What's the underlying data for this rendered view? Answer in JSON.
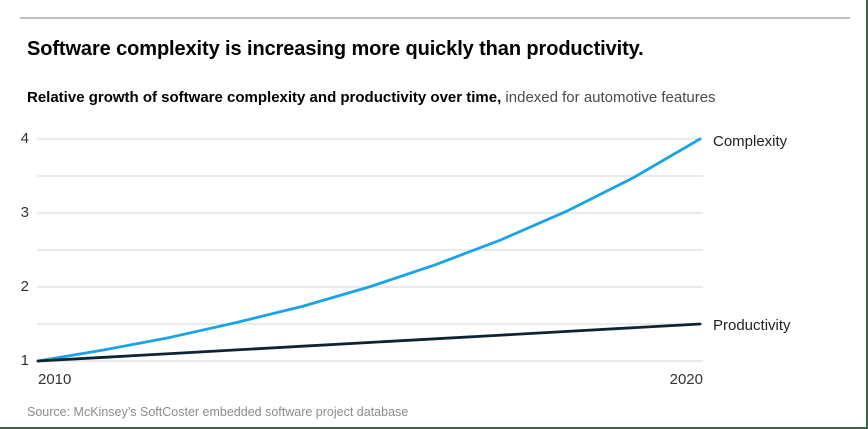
{
  "page": {
    "title": "Software complexity is increasing more quickly than productivity.",
    "subtitle_bold": "Relative growth of software complexity and productivity over time,",
    "subtitle_regular": " indexed for automotive features",
    "source": "Source: McKinsey’s SoftCoster embedded software project database"
  },
  "colors": {
    "complexity_line": "#1aa3e6",
    "productivity_line": "#0d2433",
    "gridline": "#e4e4e4",
    "top_rule": "#c0c0c0",
    "frame_border": "#41604b",
    "tick_text": "#333333",
    "source_text": "#8c8c8c"
  },
  "chart_data": {
    "type": "line",
    "x": [
      2010,
      2011,
      2012,
      2013,
      2014,
      2015,
      2016,
      2017,
      2018,
      2019,
      2020
    ],
    "x_axis_labels": [
      "2010",
      "2020"
    ],
    "ylim": [
      1,
      4
    ],
    "yticks": [
      1,
      2,
      3,
      4
    ],
    "gridline_step": 0.5,
    "grid": true,
    "legend_position": "right-of-line-ends",
    "series": [
      {
        "name": "Complexity",
        "color": "#1aa3e6",
        "values": [
          1.0,
          1.15,
          1.32,
          1.52,
          1.74,
          2.0,
          2.3,
          2.64,
          3.03,
          3.48,
          4.0
        ]
      },
      {
        "name": "Productivity",
        "color": "#0d2433",
        "values": [
          1.0,
          1.05,
          1.1,
          1.15,
          1.2,
          1.25,
          1.3,
          1.35,
          1.4,
          1.45,
          1.5
        ]
      }
    ]
  }
}
